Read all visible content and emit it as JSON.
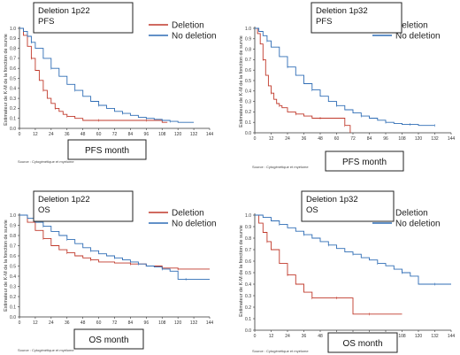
{
  "chart_data": [
    {
      "type": "line",
      "panel_title": "Deletion 1p22",
      "panel_subtitle": "PFS",
      "xlabel": "PFS month",
      "ylabel": "Estimateur de K-M de la fonction de survie",
      "source": "Source : Cytogénétique et myélome",
      "xlim": [
        0,
        144
      ],
      "ylim": [
        0,
        1.0
      ],
      "xticks": [
        0,
        12,
        24,
        36,
        48,
        60,
        72,
        84,
        96,
        108,
        120,
        132,
        144
      ],
      "yticks": [
        0,
        0.1,
        0.2,
        0.3,
        0.4,
        0.5,
        0.6,
        0.7,
        0.8,
        0.9,
        1.0
      ],
      "legend_position": "top-right",
      "series": [
        {
          "name": "Deletion",
          "color": "#c0392b",
          "x": [
            0,
            3,
            6,
            9,
            12,
            15,
            18,
            21,
            24,
            27,
            30,
            33,
            36,
            42,
            48,
            60,
            72,
            84,
            96,
            108,
            112
          ],
          "y": [
            1.0,
            0.93,
            0.82,
            0.7,
            0.58,
            0.48,
            0.38,
            0.3,
            0.25,
            0.2,
            0.17,
            0.14,
            0.12,
            0.1,
            0.08,
            0.08,
            0.08,
            0.08,
            0.08,
            0.06,
            0.06
          ]
        },
        {
          "name": "No deletion",
          "color": "#2f6db5",
          "x": [
            0,
            3,
            6,
            9,
            12,
            18,
            24,
            30,
            36,
            42,
            48,
            54,
            60,
            66,
            72,
            78,
            84,
            90,
            96,
            102,
            108,
            114,
            120,
            132
          ],
          "y": [
            1.0,
            0.97,
            0.92,
            0.86,
            0.8,
            0.7,
            0.6,
            0.52,
            0.44,
            0.38,
            0.32,
            0.27,
            0.23,
            0.2,
            0.17,
            0.15,
            0.13,
            0.11,
            0.1,
            0.09,
            0.08,
            0.07,
            0.06,
            0.06
          ]
        }
      ]
    },
    {
      "type": "line",
      "panel_title": "Deletion 1p32",
      "panel_subtitle": "PFS",
      "xlabel": "PFS month",
      "ylabel": "Estimateur de K-M de la fonction de survie",
      "source": "Source : Cytogénétique et myélome",
      "xlim": [
        0,
        144
      ],
      "ylim": [
        0,
        1.0
      ],
      "xticks": [
        0,
        12,
        24,
        36,
        48,
        60,
        72,
        84,
        96,
        108,
        120,
        132,
        144
      ],
      "yticks": [
        0,
        0.1,
        0.2,
        0.3,
        0.4,
        0.5,
        0.6,
        0.7,
        0.8,
        0.9,
        1.0
      ],
      "legend_position": "top-right",
      "series": [
        {
          "name": "Deletion",
          "color": "#c0392b",
          "x": [
            0,
            2,
            4,
            6,
            8,
            10,
            12,
            14,
            16,
            18,
            20,
            24,
            30,
            36,
            42,
            48,
            54,
            60,
            66,
            68,
            70
          ],
          "y": [
            1.0,
            0.95,
            0.85,
            0.7,
            0.55,
            0.45,
            0.38,
            0.32,
            0.28,
            0.26,
            0.24,
            0.2,
            0.18,
            0.16,
            0.14,
            0.14,
            0.14,
            0.14,
            0.07,
            0.07,
            0.0
          ]
        },
        {
          "name": "No deletion",
          "color": "#2f6db5",
          "x": [
            0,
            3,
            6,
            9,
            12,
            18,
            24,
            30,
            36,
            42,
            48,
            54,
            60,
            66,
            72,
            78,
            84,
            90,
            96,
            102,
            108,
            114,
            120,
            126,
            132
          ],
          "y": [
            1.0,
            0.97,
            0.93,
            0.88,
            0.82,
            0.73,
            0.63,
            0.55,
            0.47,
            0.41,
            0.35,
            0.3,
            0.26,
            0.22,
            0.19,
            0.16,
            0.14,
            0.12,
            0.1,
            0.09,
            0.08,
            0.08,
            0.07,
            0.07,
            0.07
          ]
        }
      ]
    },
    {
      "type": "line",
      "panel_title": "Deletion 1p22",
      "panel_subtitle": "OS",
      "xlabel": "OS month",
      "ylabel": "Estimateur de K-M de la fonction de survie",
      "source": "Source : Cytogénétique et myélome",
      "xlim": [
        0,
        144
      ],
      "ylim": [
        0,
        1.0
      ],
      "xticks": [
        0,
        12,
        24,
        36,
        48,
        60,
        72,
        84,
        96,
        108,
        120,
        132,
        144
      ],
      "yticks": [
        0,
        0.1,
        0.2,
        0.3,
        0.4,
        0.5,
        0.6,
        0.7,
        0.8,
        0.9,
        1.0
      ],
      "legend_position": "top-right",
      "series": [
        {
          "name": "Deletion",
          "color": "#c0392b",
          "x": [
            0,
            6,
            12,
            18,
            24,
            30,
            36,
            42,
            48,
            54,
            60,
            72,
            84,
            96,
            108,
            120,
            132,
            144
          ],
          "y": [
            1.0,
            0.93,
            0.85,
            0.77,
            0.7,
            0.66,
            0.63,
            0.6,
            0.58,
            0.56,
            0.54,
            0.53,
            0.52,
            0.5,
            0.48,
            0.47,
            0.47,
            0.47
          ]
        },
        {
          "name": "No deletion",
          "color": "#2f6db5",
          "x": [
            0,
            6,
            12,
            18,
            24,
            30,
            36,
            42,
            48,
            54,
            60,
            66,
            72,
            78,
            84,
            90,
            96,
            102,
            108,
            114,
            120,
            126,
            132,
            144
          ],
          "y": [
            1.0,
            0.97,
            0.93,
            0.89,
            0.84,
            0.8,
            0.76,
            0.72,
            0.68,
            0.65,
            0.62,
            0.6,
            0.58,
            0.56,
            0.54,
            0.52,
            0.5,
            0.49,
            0.47,
            0.45,
            0.37,
            0.37,
            0.37,
            0.37
          ]
        }
      ]
    },
    {
      "type": "line",
      "panel_title": "Deletion 1p32",
      "panel_subtitle": "OS",
      "xlabel": "OS month",
      "ylabel": "Estimateur de K-M de la fonction de survie",
      "source": "Source : Cytogénétique et myélome",
      "xlim": [
        0,
        144
      ],
      "ylim": [
        0,
        1.0
      ],
      "xticks": [
        0,
        12,
        24,
        36,
        48,
        60,
        72,
        84,
        96,
        108,
        120,
        132,
        144
      ],
      "yticks": [
        0,
        0.1,
        0.2,
        0.3,
        0.4,
        0.5,
        0.6,
        0.7,
        0.8,
        0.9,
        1.0
      ],
      "legend_position": "top-right",
      "series": [
        {
          "name": "Deletion",
          "color": "#c0392b",
          "x": [
            0,
            3,
            6,
            9,
            12,
            18,
            24,
            30,
            36,
            42,
            48,
            54,
            60,
            66,
            72,
            84,
            96,
            108
          ],
          "y": [
            1.0,
            0.93,
            0.85,
            0.77,
            0.7,
            0.58,
            0.48,
            0.4,
            0.33,
            0.28,
            0.28,
            0.28,
            0.28,
            0.28,
            0.14,
            0.14,
            0.14,
            0.14
          ]
        },
        {
          "name": "No deletion",
          "color": "#2f6db5",
          "x": [
            0,
            6,
            12,
            18,
            24,
            30,
            36,
            42,
            48,
            54,
            60,
            66,
            72,
            78,
            84,
            90,
            96,
            102,
            108,
            114,
            120,
            132,
            144
          ],
          "y": [
            1.0,
            0.98,
            0.95,
            0.92,
            0.89,
            0.86,
            0.83,
            0.8,
            0.77,
            0.74,
            0.71,
            0.68,
            0.66,
            0.63,
            0.61,
            0.58,
            0.56,
            0.53,
            0.5,
            0.47,
            0.4,
            0.4,
            0.4
          ]
        }
      ]
    }
  ]
}
